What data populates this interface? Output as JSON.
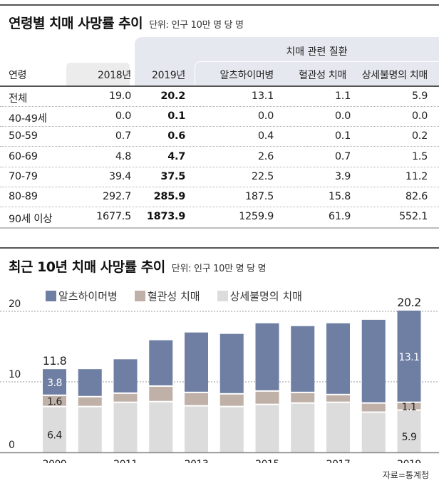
{
  "table": {
    "title": "연령별 치매 사망률 추이",
    "unit": "단위: 인구 10만 명 당 명",
    "group_label": "치매 관련 질환",
    "headers": [
      "연령",
      "2018년",
      "2019년",
      "알츠하이머병",
      "혈관성 치매",
      "상세불명의 치매"
    ],
    "rows": [
      {
        "age": "전체",
        "y2018": "19.0",
        "y2019": "20.2",
        "alzheimer": "13.1",
        "vascular": "1.1",
        "unspecified": "5.9"
      },
      {
        "age": "40-49세",
        "y2018": "0.0",
        "y2019": "0.1",
        "alzheimer": "0.0",
        "vascular": "0.0",
        "unspecified": "0.0"
      },
      {
        "age": "50-59",
        "y2018": "0.7",
        "y2019": "0.6",
        "alzheimer": "0.4",
        "vascular": "0.1",
        "unspecified": "0.2"
      },
      {
        "age": "60-69",
        "y2018": "4.8",
        "y2019": "4.7",
        "alzheimer": "2.6",
        "vascular": "0.7",
        "unspecified": "1.5"
      },
      {
        "age": "70-79",
        "y2018": "39.4",
        "y2019": "37.5",
        "alzheimer": "22.5",
        "vascular": "3.9",
        "unspecified": "11.2"
      },
      {
        "age": "80-89",
        "y2018": "292.7",
        "y2019": "285.9",
        "alzheimer": "187.5",
        "vascular": "15.8",
        "unspecified": "82.6"
      },
      {
        "age": "90세 이상",
        "y2018": "1677.5",
        "y2019": "1873.9",
        "alzheimer": "1259.9",
        "vascular": "61.9",
        "unspecified": "552.1"
      }
    ]
  },
  "chart_title": "최근 10년 치매 사망률 추이",
  "chart_unit": "단위: 인구 10만 명 당 명",
  "source": "자료=통계청",
  "colors": {
    "alzheimer": "#6e7fa3",
    "vascular": "#bfb0a8",
    "unspecified": "#dcdcdc",
    "grid": "#999999",
    "axis": "#888888"
  },
  "chart_data": {
    "type": "bar",
    "stacked": true,
    "title": "최근 10년 치매 사망률 추이",
    "subtitle": "단위: 인구 10만 명 당 명",
    "xlabel": "",
    "ylabel": "",
    "ylim": [
      0,
      20
    ],
    "yticks": [
      0,
      10,
      20
    ],
    "grid": true,
    "legend_position": "top-left",
    "categories": [
      "2009",
      "2010",
      "2011",
      "2012",
      "2013",
      "2014",
      "2015",
      "2016",
      "2017",
      "2018",
      "2019"
    ],
    "xtick_labels": [
      "2009",
      "2011",
      "2013",
      "2015",
      "2017",
      "2019"
    ],
    "series": [
      {
        "name": "상세불명의 치매",
        "key": "unspecified",
        "values": [
          6.4,
          6.4,
          7.0,
          7.1,
          6.5,
          6.4,
          6.7,
          6.9,
          7.0,
          5.6,
          5.9
        ]
      },
      {
        "name": "혈관성 치매",
        "key": "vascular",
        "values": [
          1.6,
          1.4,
          1.3,
          2.2,
          1.9,
          1.8,
          1.9,
          1.5,
          1.1,
          1.3,
          1.1
        ]
      },
      {
        "name": "알츠하이머병",
        "key": "alzheimer",
        "values": [
          3.8,
          4.0,
          4.9,
          6.6,
          8.6,
          8.6,
          9.7,
          9.5,
          10.2,
          11.9,
          13.1
        ]
      }
    ],
    "legend_order": [
      "알츠하이머병",
      "혈관성 치매",
      "상세불명의 치매"
    ],
    "annotations": [
      {
        "category": "2009",
        "total_label": "11.8",
        "segment_labels": {
          "alzheimer": "3.8",
          "vascular": "1.6",
          "unspecified": "6.4"
        }
      },
      {
        "category": "2019",
        "total_label": "20.2",
        "segment_labels": {
          "alzheimer": "13.1",
          "vascular": "1.1",
          "unspecified": "5.9"
        }
      }
    ]
  }
}
